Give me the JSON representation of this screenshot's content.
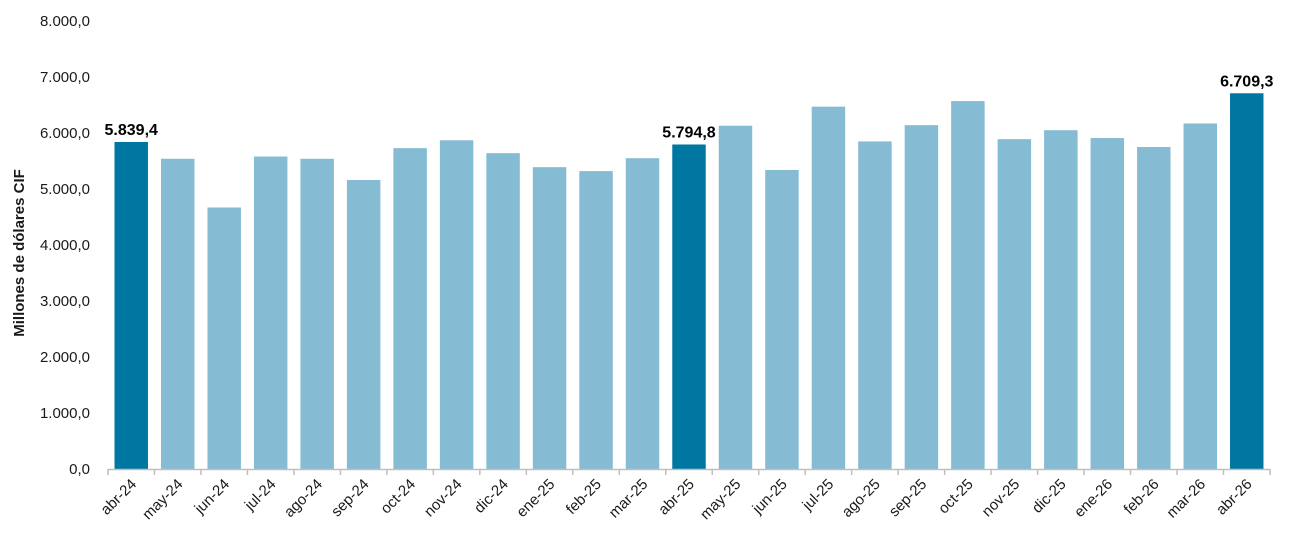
{
  "chart_data": {
    "type": "bar",
    "title": "",
    "xlabel": "",
    "ylabel": "Millones de dólares CIF",
    "ylim": [
      0,
      8000
    ],
    "yticks": [
      "0,0",
      "1.000,0",
      "2.000,0",
      "3.000,0",
      "4.000,0",
      "5.000,0",
      "6.000,0",
      "7.000,0",
      "8.000,0"
    ],
    "grid": false,
    "legend": "none",
    "categories": [
      "abr-24",
      "may-24",
      "jun-24",
      "jul-24",
      "ago-24",
      "sep-24",
      "oct-24",
      "nov-24",
      "dic-24",
      "ene-25",
      "feb-25",
      "mar-25",
      "abr-25",
      "may-25",
      "jun-25",
      "jul-25",
      "ago-25",
      "sep-25",
      "oct-25",
      "nov-25",
      "dic-25",
      "ene-26",
      "feb-26",
      "mar-26",
      "abr-26"
    ],
    "values": [
      5839.4,
      5540,
      4670,
      5580,
      5540,
      5160,
      5730,
      5870,
      5640,
      5390,
      5320,
      5550,
      5794.8,
      6130,
      5340,
      6470,
      5850,
      6140,
      6570,
      5890,
      6050,
      5910,
      5750,
      6170,
      6709.3
    ],
    "highlighted": [
      "abr-24",
      "abr-25",
      "abr-26"
    ],
    "data_labels": [
      {
        "category": "abr-24",
        "text": "5.839,4"
      },
      {
        "category": "abr-25",
        "text": "5.794,8"
      },
      {
        "category": "abr-26",
        "text": "6.709,3"
      }
    ],
    "colors": {
      "bar": "#85bcd4",
      "highlight": "#0077a0",
      "axis": "#bfbfbf",
      "text": "#1a1a1a"
    }
  }
}
